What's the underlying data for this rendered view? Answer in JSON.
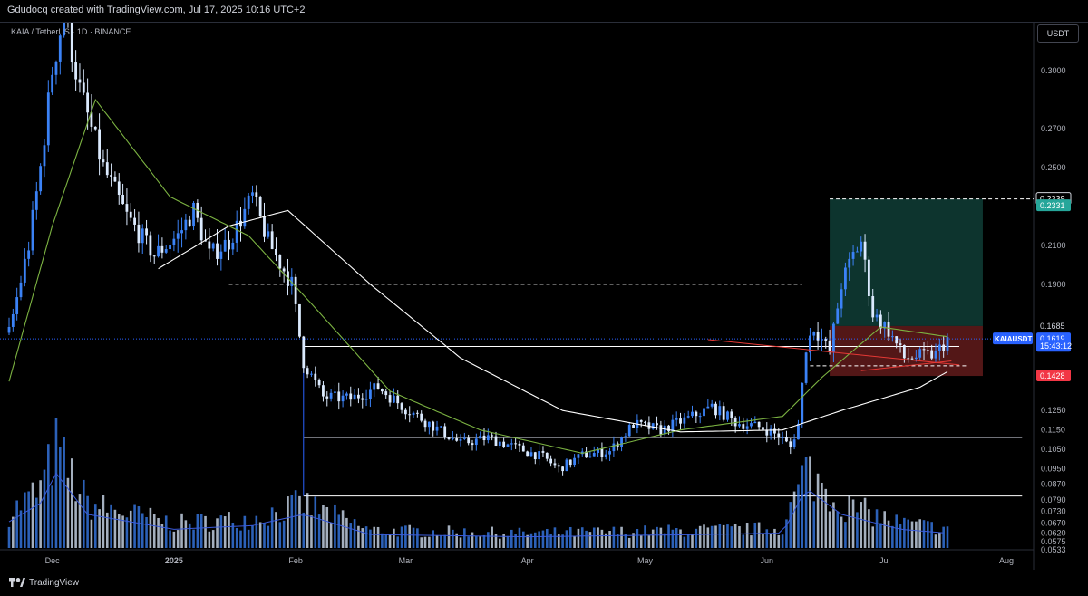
{
  "header": {
    "watermark": "Gdudocq created with TradingView.com, Jul 17, 2025 10:16 UTC+2"
  },
  "symbol_line": "KAIA / TetherUS · 1D · BINANCE",
  "currency_button": "USDT",
  "footer": {
    "brand": "TradingView",
    "logo_icon": "tradingview-logo-icon"
  },
  "colors": {
    "up": "#3b82f6",
    "down": "#dbeafe",
    "ma_fast": "#7cb342",
    "ma_slow": "#ffffff",
    "volume_ma": "#3b5bdb",
    "target_zone": "#0f3d36",
    "stop_zone": "#5c1a1a",
    "trendline_red": "#e53935",
    "label_green": "#26a69a",
    "label_red": "#f23645",
    "label_blue": "#2962ff"
  },
  "chart_data": {
    "type": "candlestick",
    "symbol": "KAIAUSDT",
    "timeframe": "1D",
    "price_range": [
      0.0533,
      0.32
    ],
    "x_labels": [
      "Dec",
      "2025",
      "Feb",
      "Mar",
      "Apr",
      "May",
      "Jun",
      "Jul",
      "Aug"
    ],
    "y_ticks": [
      0.3,
      0.27,
      0.25,
      0.21,
      0.19,
      0.1685,
      0.125,
      0.115,
      0.105,
      0.095,
      0.087,
      0.079,
      0.073,
      0.067,
      0.062,
      0.0575,
      0.0533
    ],
    "y_tick_labels": [
      "0.3000",
      "0.2700",
      "0.2500",
      "0.2100",
      "0.1900",
      "0.1685",
      "0.1250",
      "0.1150",
      "0.1050",
      "0.0950",
      "0.0870",
      "0.0790",
      "0.0730",
      "0.0670",
      "0.0620",
      "0.0575",
      "0.0533"
    ],
    "price_anchors": [
      [
        "2024-11-20",
        0.165
      ],
      [
        "2024-11-25",
        0.21
      ],
      [
        "2024-11-28",
        0.25
      ],
      [
        "2024-12-01",
        0.3
      ],
      [
        "2024-12-04",
        0.33
      ],
      [
        "2024-12-08",
        0.29
      ],
      [
        "2024-12-14",
        0.25
      ],
      [
        "2024-12-20",
        0.225
      ],
      [
        "2024-12-27",
        0.205
      ],
      [
        "2025-01-02",
        0.215
      ],
      [
        "2025-01-06",
        0.228
      ],
      [
        "2025-01-10",
        0.205
      ],
      [
        "2025-01-15",
        0.212
      ],
      [
        "2025-01-21",
        0.235
      ],
      [
        "2025-01-25",
        0.212
      ],
      [
        "2025-01-31",
        0.19
      ],
      [
        "2025-02-03",
        0.15
      ],
      [
        "2025-02-08",
        0.132
      ],
      [
        "2025-02-15",
        0.131
      ],
      [
        "2025-02-22",
        0.137
      ],
      [
        "2025-03-01",
        0.126
      ],
      [
        "2025-03-08",
        0.117
      ],
      [
        "2025-03-15",
        0.108
      ],
      [
        "2025-03-22",
        0.111
      ],
      [
        "2025-03-29",
        0.106
      ],
      [
        "2025-04-05",
        0.101
      ],
      [
        "2025-04-09",
        0.095
      ],
      [
        "2025-04-15",
        0.102
      ],
      [
        "2025-04-22",
        0.104
      ],
      [
        "2025-04-28",
        0.118
      ],
      [
        "2025-05-05",
        0.115
      ],
      [
        "2025-05-12",
        0.121
      ],
      [
        "2025-05-18",
        0.127
      ],
      [
        "2025-05-24",
        0.119
      ],
      [
        "2025-05-31",
        0.116
      ],
      [
        "2025-06-04",
        0.112
      ],
      [
        "2025-06-07",
        0.106
      ],
      [
        "2025-06-09",
        0.118
      ],
      [
        "2025-06-11",
        0.158
      ],
      [
        "2025-06-13",
        0.168
      ],
      [
        "2025-06-17",
        0.155
      ],
      [
        "2025-06-20",
        0.19
      ],
      [
        "2025-06-23",
        0.205
      ],
      [
        "2025-06-25",
        0.212
      ],
      [
        "2025-06-28",
        0.175
      ],
      [
        "2025-07-02",
        0.166
      ],
      [
        "2025-07-06",
        0.152
      ],
      [
        "2025-07-10",
        0.153
      ],
      [
        "2025-07-14",
        0.154
      ],
      [
        "2025-07-17",
        0.1619
      ]
    ],
    "volume_anchors": [
      [
        "2024-11-20",
        0.35
      ],
      [
        "2024-11-28",
        0.6
      ],
      [
        "2024-12-02",
        1.0
      ],
      [
        "2024-12-10",
        0.45
      ],
      [
        "2025-01-01",
        0.25
      ],
      [
        "2025-01-21",
        0.3
      ],
      [
        "2025-02-03",
        0.45
      ],
      [
        "2025-02-20",
        0.18
      ],
      [
        "2025-04-01",
        0.15
      ],
      [
        "2025-05-15",
        0.18
      ],
      [
        "2025-06-05",
        0.2
      ],
      [
        "2025-06-11",
        0.8
      ],
      [
        "2025-06-20",
        0.45
      ],
      [
        "2025-07-05",
        0.25
      ],
      [
        "2025-07-17",
        0.2
      ]
    ],
    "moving_averages": [
      {
        "period": "fast",
        "color_key": "ma_fast",
        "anchors": [
          [
            "2024-11-20",
            0.14
          ],
          [
            "2024-12-01",
            0.22
          ],
          [
            "2024-12-12",
            0.285
          ],
          [
            "2024-12-31",
            0.235
          ],
          [
            "2025-01-20",
            0.215
          ],
          [
            "2025-02-05",
            0.18
          ],
          [
            "2025-02-25",
            0.135
          ],
          [
            "2025-03-20",
            0.115
          ],
          [
            "2025-04-15",
            0.103
          ],
          [
            "2025-05-10",
            0.115
          ],
          [
            "2025-06-05",
            0.122
          ],
          [
            "2025-06-15",
            0.142
          ],
          [
            "2025-06-30",
            0.168
          ],
          [
            "2025-07-17",
            0.163
          ]
        ]
      },
      {
        "period": "slow",
        "color_key": "ma_slow",
        "anchors": [
          [
            "2024-12-28",
            0.198
          ],
          [
            "2025-01-15",
            0.22
          ],
          [
            "2025-01-30",
            0.228
          ],
          [
            "2025-02-20",
            0.19
          ],
          [
            "2025-03-15",
            0.152
          ],
          [
            "2025-04-10",
            0.125
          ],
          [
            "2025-05-10",
            0.114
          ],
          [
            "2025-06-05",
            0.115
          ],
          [
            "2025-06-20",
            0.125
          ],
          [
            "2025-07-10",
            0.137
          ],
          [
            "2025-07-17",
            0.145
          ]
        ]
      }
    ],
    "horizontal_levels": [
      {
        "price": 0.2339,
        "from": "2025-06-17",
        "to": "2025-08-31",
        "style": "dashed",
        "color": "#ffffff"
      },
      {
        "price": 0.19,
        "from": "2025-01-15",
        "to": "2025-06-10",
        "style": "dashed",
        "color": "#ffffff"
      },
      {
        "price": 0.158,
        "from": "2025-02-03",
        "to": "2025-07-20",
        "style": "solid",
        "color": "#ffffff"
      },
      {
        "price": 0.148,
        "from": "2025-06-12",
        "to": "2025-07-22",
        "style": "dashed",
        "color": "#ffffff"
      },
      {
        "price": 0.111,
        "from": "2025-02-03",
        "to": "2025-08-05",
        "style": "solid",
        "color": "#9598a1"
      },
      {
        "price": 0.081,
        "from": "2025-02-03",
        "to": "2025-08-05",
        "style": "solid",
        "color": "#ffffff"
      }
    ],
    "trendlines": [
      {
        "from": [
          "2025-05-17",
          0.1615
        ],
        "to": [
          "2025-07-20",
          0.1485
        ],
        "color_key": "trendline_red"
      },
      {
        "from": [
          "2025-06-25",
          0.1455
        ],
        "to": [
          "2025-07-18",
          0.1505
        ],
        "color_key": "trendline_red"
      }
    ],
    "position": {
      "from": "2025-06-17",
      "to": "2025-07-26",
      "entry": 0.1685,
      "target": 0.2339,
      "stop": 0.1428
    },
    "price_labels": [
      {
        "text": "0.2339",
        "price": 0.2339,
        "style": "outline"
      },
      {
        "text": "0.2331",
        "price": 0.2304,
        "style": "green"
      },
      {
        "text": "0.1685",
        "price": 0.1685,
        "style": "plain"
      },
      {
        "text": "KAIAUSDT",
        "price": 0.1619,
        "style": "blue-left"
      },
      {
        "text": "0.1619",
        "price": 0.1619,
        "style": "blue"
      },
      {
        "text": "15:43:12",
        "price": 0.1581,
        "style": "blue"
      },
      {
        "text": "0.1428",
        "price": 0.1428,
        "style": "red"
      }
    ]
  }
}
